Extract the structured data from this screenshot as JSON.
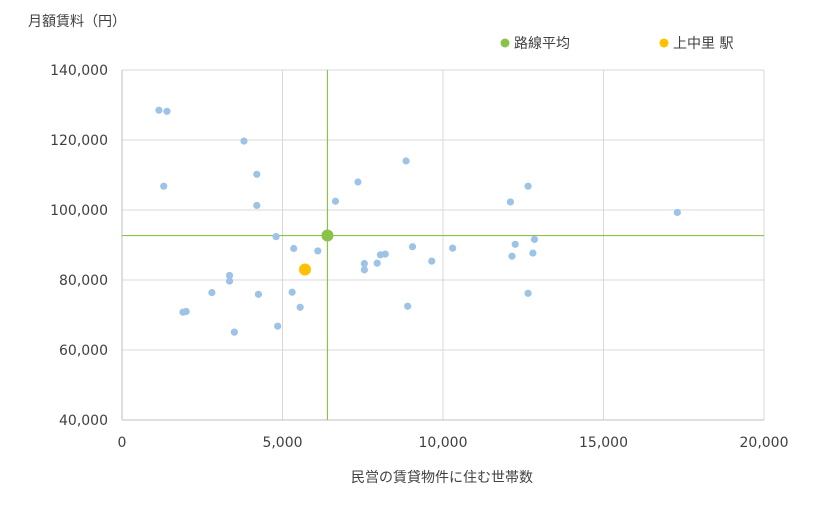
{
  "chart_data": {
    "type": "scatter",
    "xlabel": "民営の賃貸物件に住む世帯数",
    "ylabel": "月額賃料（円）",
    "xlim": [
      0,
      20000
    ],
    "ylim": [
      40000,
      140000
    ],
    "xticks": [
      "0",
      "5,000",
      "10,000",
      "15,000",
      "20,000"
    ],
    "yticks": [
      "40,000",
      "60,000",
      "80,000",
      "100,000",
      "120,000",
      "140,000"
    ],
    "grid": true,
    "legend_position": "top-right",
    "colors": {
      "points": "#9dc3e6",
      "average": "#8bc34a",
      "station": "#ffc000",
      "grid": "#d9d9d9",
      "axis": "#bfbfbf"
    },
    "series": [
      {
        "role": "stations",
        "points": [
          [
            1150,
            128500
          ],
          [
            1400,
            128200
          ],
          [
            1300,
            106800
          ],
          [
            3800,
            119700
          ],
          [
            4200,
            110200
          ],
          [
            4200,
            101300
          ],
          [
            4800,
            92400
          ],
          [
            4250,
            75900
          ],
          [
            3350,
            81300
          ],
          [
            3350,
            79700
          ],
          [
            2800,
            76400
          ],
          [
            1900,
            70800
          ],
          [
            2000,
            71000
          ],
          [
            3500,
            65100
          ],
          [
            4850,
            66800
          ],
          [
            5300,
            76500
          ],
          [
            5350,
            89000
          ],
          [
            5550,
            72200
          ],
          [
            6100,
            88300
          ],
          [
            6650,
            102500
          ],
          [
            7350,
            108000
          ],
          [
            7550,
            84700
          ],
          [
            7550,
            82900
          ],
          [
            7950,
            84800
          ],
          [
            8050,
            87200
          ],
          [
            8200,
            87400
          ],
          [
            8850,
            114000
          ],
          [
            8900,
            72500
          ],
          [
            9050,
            89500
          ],
          [
            9650,
            85400
          ],
          [
            10300,
            89100
          ],
          [
            12100,
            102300
          ],
          [
            12250,
            90200
          ],
          [
            12150,
            86800
          ],
          [
            12650,
            106800
          ],
          [
            12800,
            87700
          ],
          [
            12850,
            91600
          ],
          [
            12650,
            76200
          ],
          [
            17300,
            99300
          ]
        ]
      },
      {
        "name": "路線平均",
        "points": [
          [
            6400,
            92700
          ]
        ]
      },
      {
        "name": "上中里 駅",
        "points": [
          [
            5700,
            83000
          ]
        ]
      }
    ],
    "reference_lines": {
      "x": 6400,
      "y": 92700
    }
  }
}
